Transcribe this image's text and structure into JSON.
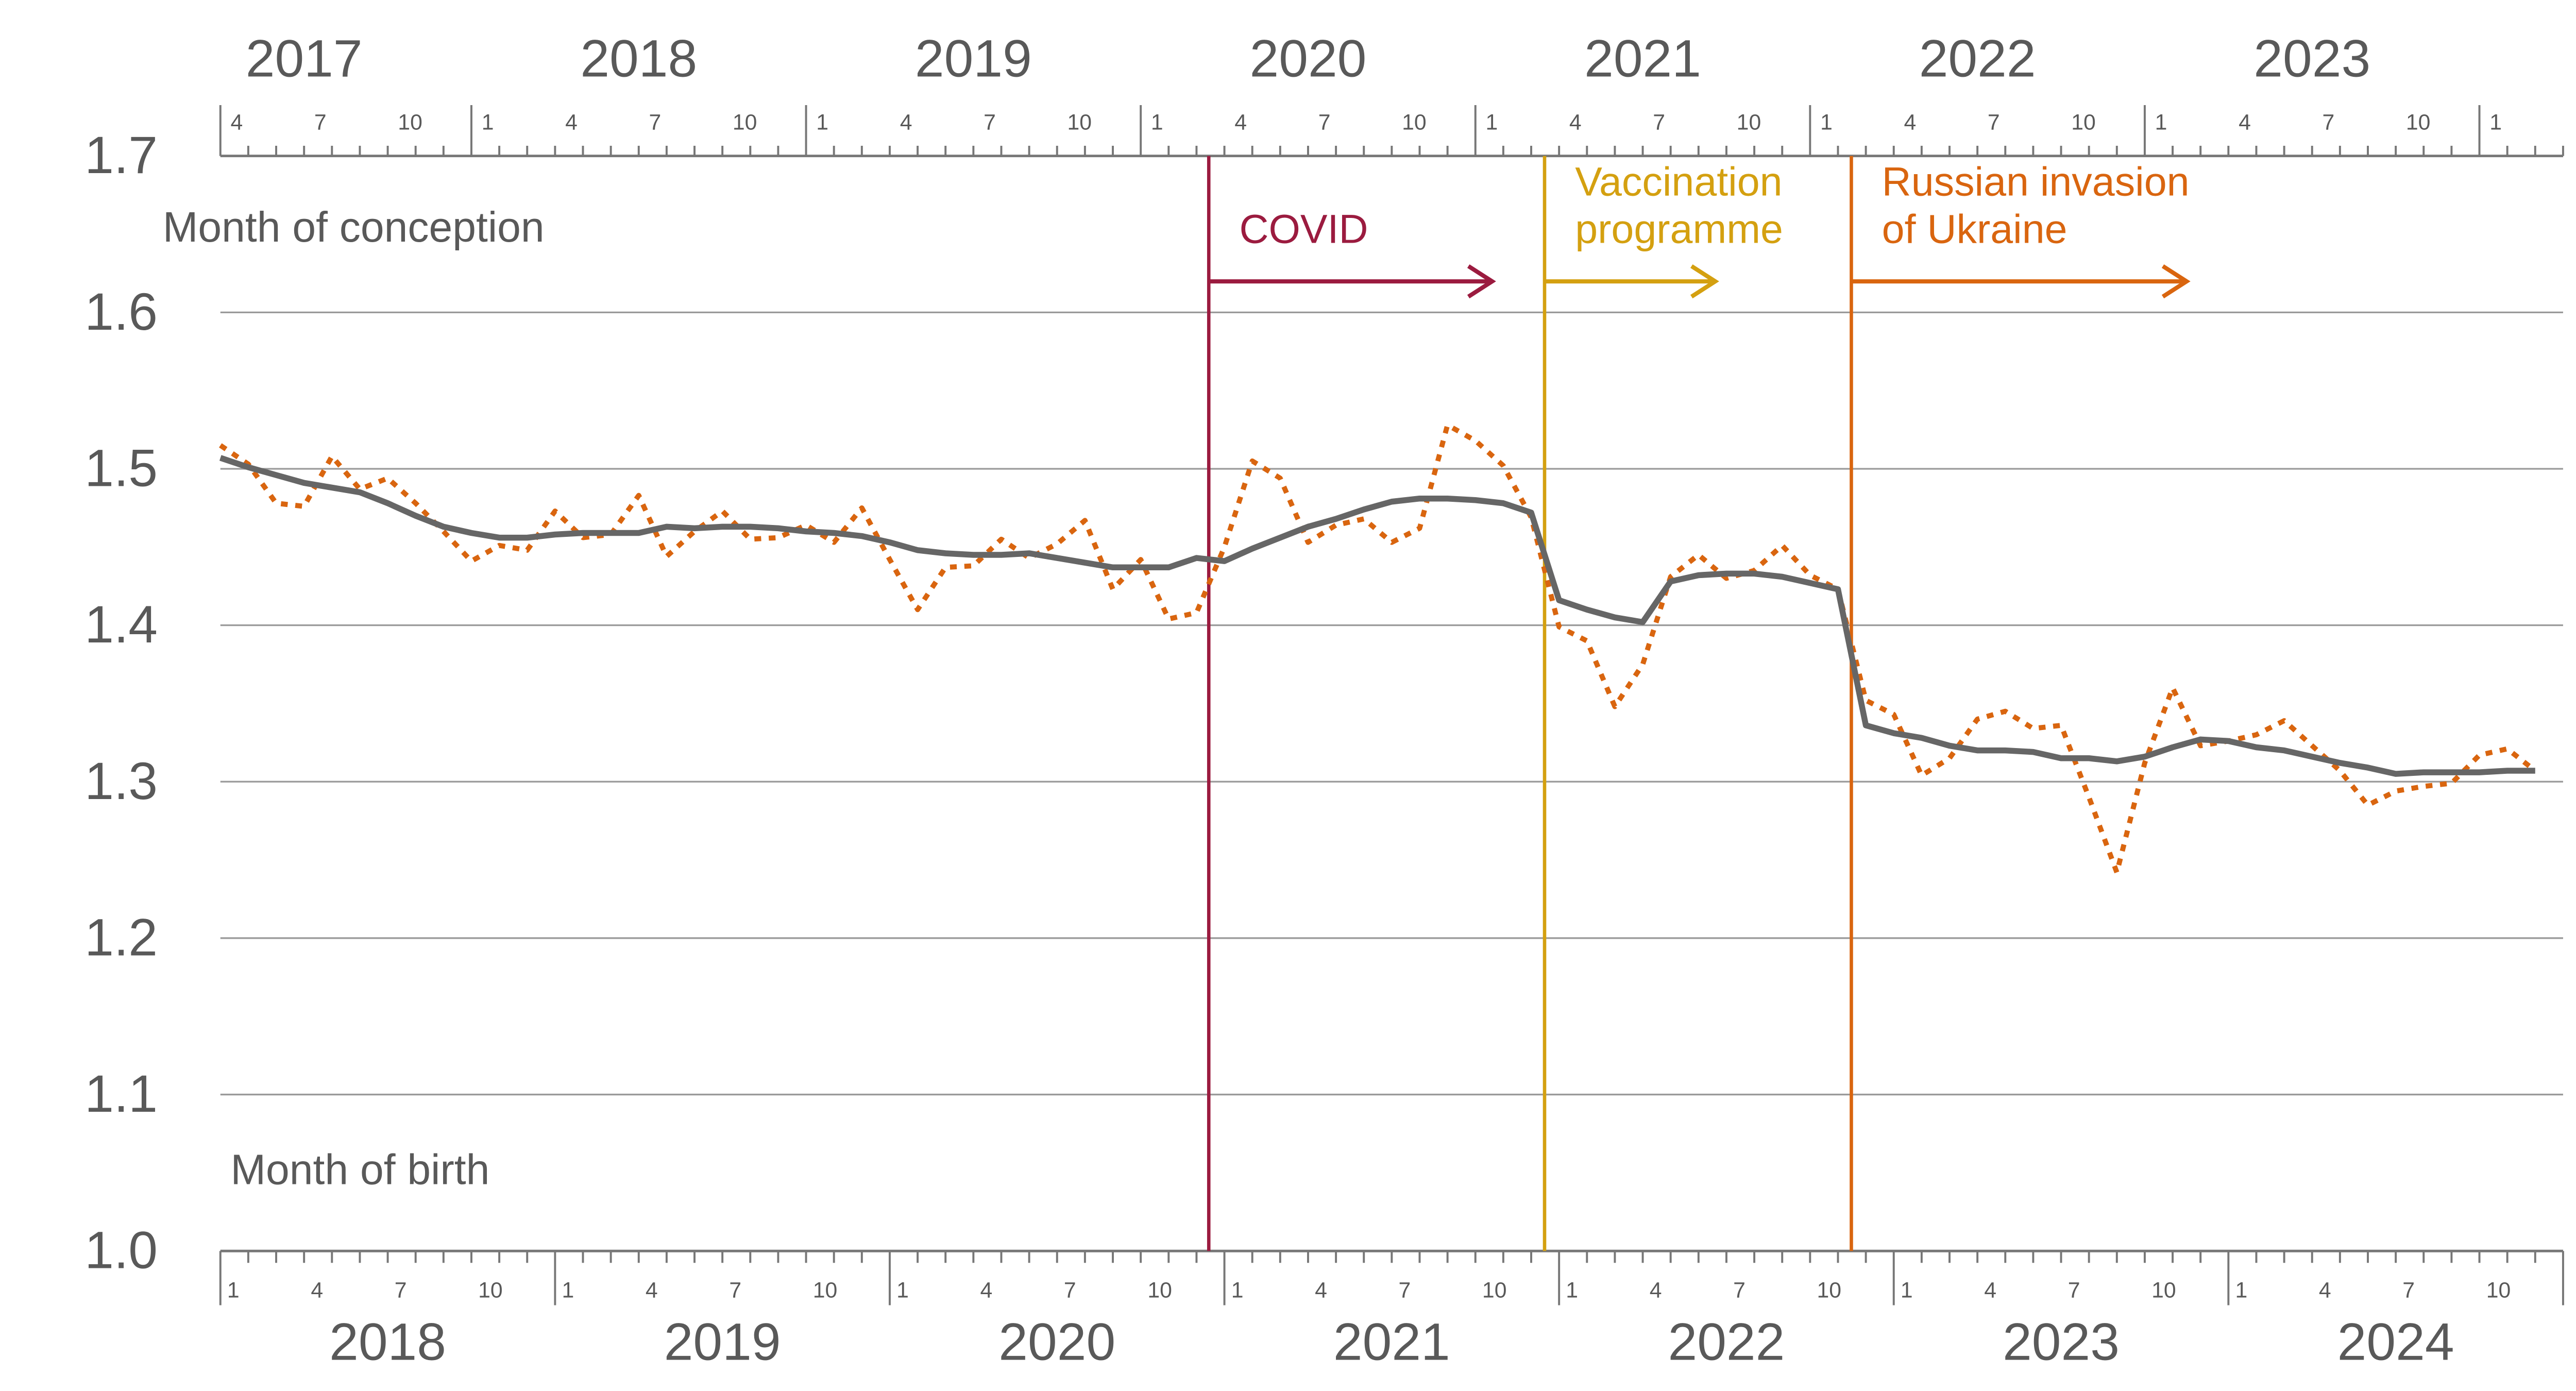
{
  "chart_data": {
    "type": "line",
    "ylim": [
      1.0,
      1.7
    ],
    "yticks": [
      {
        "value": 1.0,
        "label": "1.0"
      },
      1.1,
      1.2,
      1.3,
      1.4,
      1.5,
      1.6,
      1.7
    ],
    "grid": true,
    "xlim": [
      0,
      84
    ],
    "top_axis_label": "Month of conception",
    "bottom_axis_label": "Month of birth",
    "categories": [
      "1",
      null,
      null,
      "4",
      null,
      null,
      "7",
      null,
      null,
      "10",
      null,
      null,
      "1",
      null,
      null,
      "4",
      null,
      null,
      "7",
      null,
      null,
      "10",
      null,
      null,
      "1",
      null,
      null,
      "4",
      null,
      null,
      "7",
      null,
      null,
      "10",
      null,
      null,
      "1",
      null,
      null,
      "4",
      null,
      null,
      "7",
      null,
      null,
      "10",
      null,
      null,
      "1",
      null,
      null,
      "4",
      null,
      null,
      "7",
      null,
      null,
      "10",
      null,
      null,
      "1",
      null,
      null,
      "4",
      null,
      null,
      "7",
      null,
      null,
      "10",
      null,
      null,
      "1",
      null,
      null,
      "4",
      null,
      null,
      "7",
      null,
      null,
      "10",
      null,
      null
    ],
    "years": [
      "2018",
      "2019",
      "2020",
      "2021",
      "2022",
      "2023",
      "2024"
    ],
    "top_categories": [
      "4",
      null,
      null,
      "7",
      null,
      null,
      "10",
      null,
      null,
      "1",
      null,
      null,
      "4",
      null,
      null,
      "7",
      null,
      null,
      "10",
      null,
      null,
      "1",
      null,
      null,
      "4",
      null,
      null,
      "7",
      null,
      null,
      "10",
      null,
      null,
      "1",
      null,
      null,
      "4",
      null,
      null,
      "7",
      null,
      null,
      "10",
      null,
      null,
      "1",
      null,
      null,
      "4",
      null,
      null,
      "7",
      null,
      null,
      "10",
      null,
      null,
      "1",
      null,
      null,
      "4",
      null,
      null,
      "7",
      null,
      null,
      "10",
      null,
      null,
      "1",
      null,
      null,
      "4",
      null,
      null,
      "7",
      null,
      null,
      "10",
      null,
      null,
      "1",
      null,
      null
    ],
    "top_years": [
      "2017",
      "2018",
      "2019",
      "2020",
      "2021",
      "2022",
      "2023"
    ],
    "series": [
      {
        "color": "#666666",
        "style": "solid",
        "values": [
          1.507,
          1.501,
          1.496,
          1.491,
          1.488,
          1.485,
          1.478,
          1.47,
          1.463,
          1.459,
          1.456,
          1.456,
          1.458,
          1.459,
          1.459,
          1.459,
          1.463,
          1.462,
          1.463,
          1.463,
          1.462,
          1.46,
          1.459,
          1.457,
          1.453,
          1.448,
          1.446,
          1.445,
          1.445,
          1.446,
          1.443,
          1.44,
          1.437,
          1.437,
          1.437,
          1.443,
          1.441,
          1.449,
          1.456,
          1.463,
          1.468,
          1.474,
          1.479,
          1.481,
          1.481,
          1.48,
          1.478,
          1.472,
          1.416,
          1.41,
          1.405,
          1.402,
          1.428,
          1.432,
          1.433,
          1.433,
          1.431,
          1.427,
          1.423,
          1.336,
          1.331,
          1.328,
          1.323,
          1.32,
          1.32,
          1.319,
          1.315,
          1.315,
          1.313,
          1.316,
          1.322,
          1.327,
          1.326,
          1.322,
          1.32,
          1.316,
          1.312,
          1.309,
          1.305,
          1.306,
          1.306,
          1.306,
          1.307,
          1.307
        ]
      },
      {
        "color": "#d9650f",
        "style": "dotted",
        "values": [
          1.515,
          1.503,
          1.478,
          1.476,
          1.508,
          1.487,
          1.494,
          1.478,
          1.46,
          1.441,
          1.451,
          1.448,
          1.473,
          1.456,
          1.458,
          1.483,
          1.444,
          1.46,
          1.473,
          1.455,
          1.456,
          1.464,
          1.453,
          1.475,
          1.442,
          1.41,
          1.437,
          1.438,
          1.455,
          1.443,
          1.452,
          1.467,
          1.423,
          1.442,
          1.404,
          1.408,
          1.45,
          1.505,
          1.494,
          1.453,
          1.464,
          1.468,
          1.453,
          1.462,
          1.528,
          1.518,
          1.502,
          1.469,
          1.399,
          1.39,
          1.348,
          1.375,
          1.431,
          1.445,
          1.43,
          1.435,
          1.451,
          1.432,
          1.423,
          1.352,
          1.343,
          1.304,
          1.315,
          1.34,
          1.345,
          1.334,
          1.336,
          1.29,
          1.242,
          1.312,
          1.36,
          1.323,
          1.326,
          1.33,
          1.339,
          1.323,
          1.307,
          1.285,
          1.294,
          1.297,
          1.299,
          1.317,
          1.321,
          1.307
        ]
      }
    ],
    "events": [
      {
        "label": [
          "COVID"
        ],
        "x": 35.44,
        "arrow_to": 45.6,
        "color": "#9b1b3f"
      },
      {
        "label": [
          "Vaccination",
          "programme"
        ],
        "x": 47.48,
        "arrow_to": 53.6,
        "color": "#d4a010"
      },
      {
        "label": [
          "Russian invasion",
          "of Ukraine"
        ],
        "x": 58.48,
        "arrow_to": 70.5,
        "color": "#d9650f"
      }
    ]
  }
}
